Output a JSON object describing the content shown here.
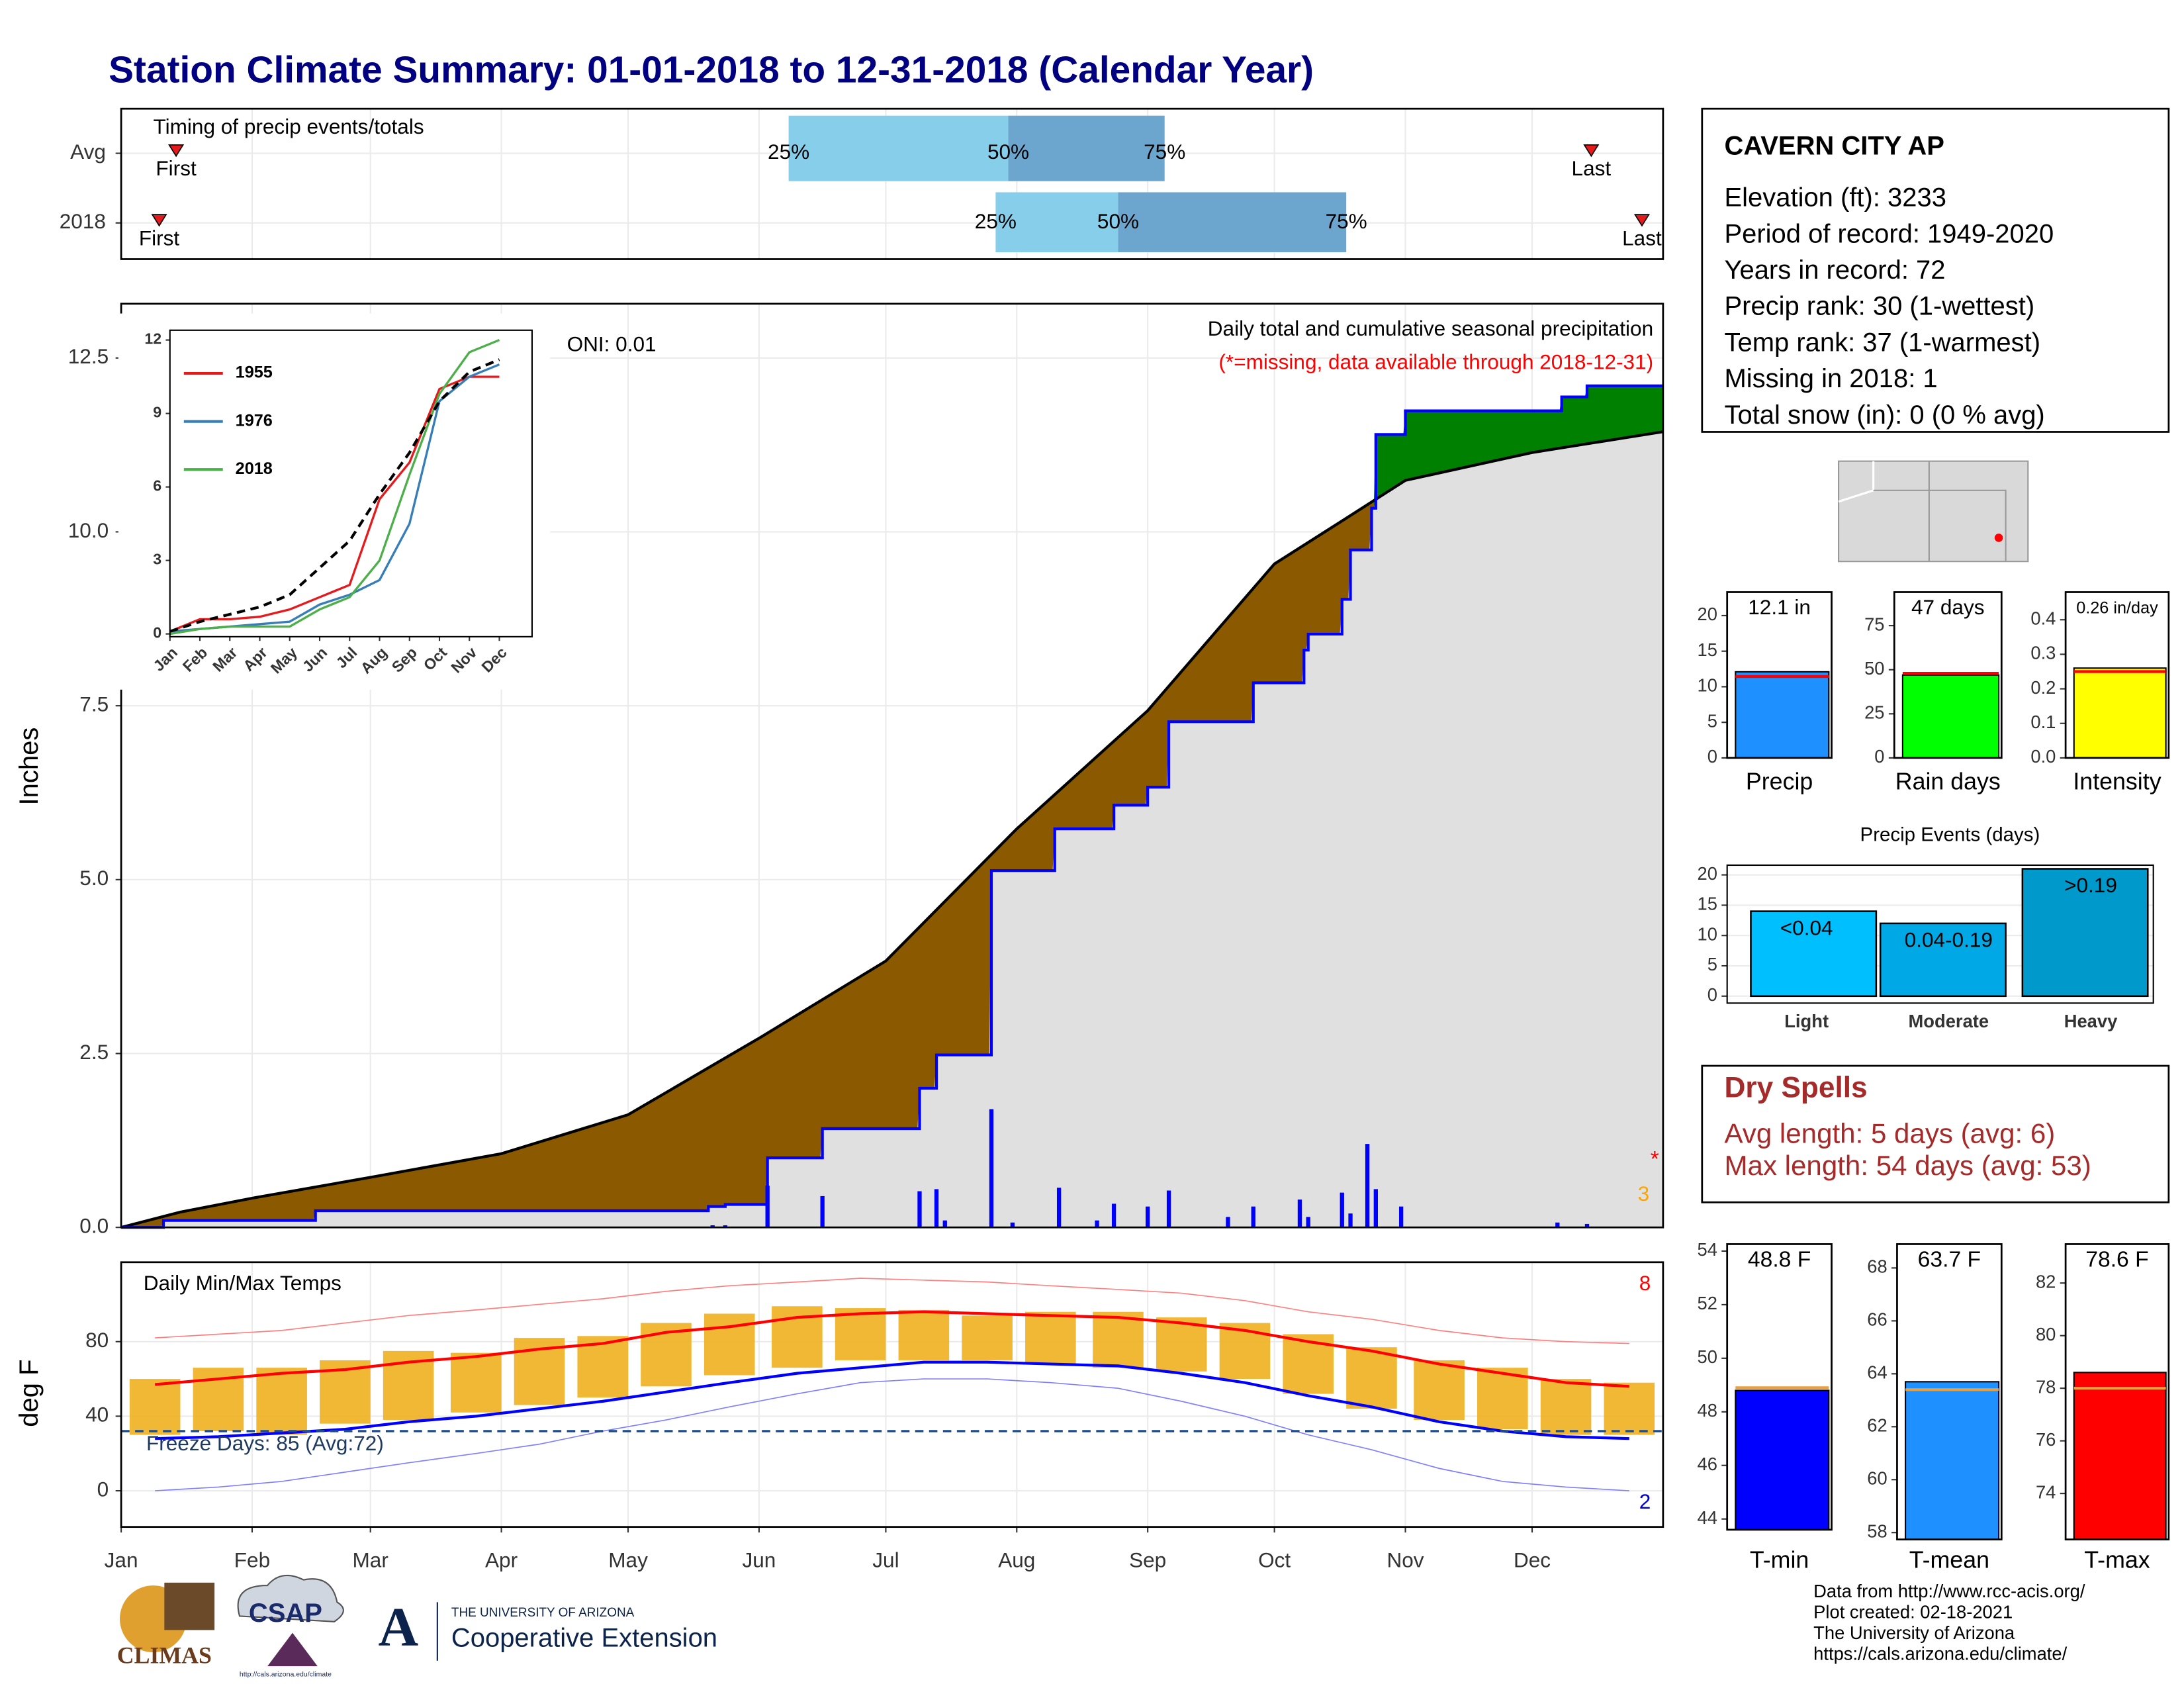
{
  "title": "Station Climate Summary: 01-01-2018 to 12-31-2018 (Calendar Year)",
  "chart_data": [
    {
      "type": "timing",
      "title": "Timing of precip events/totals",
      "categories": [
        "Avg",
        "2018"
      ],
      "xlim": [
        0,
        365
      ],
      "series": [
        {
          "name": "First",
          "color": "#e41a1c",
          "values": [
            13,
            9
          ]
        },
        {
          "name": "25%",
          "color": "#87ceeb",
          "values": [
            158,
            207
          ]
        },
        {
          "name": "50%",
          "color": "#6ca6ce",
          "values": [
            210,
            236
          ]
        },
        {
          "name": "75%",
          "values": [
            247,
            290
          ]
        },
        {
          "name": "Last",
          "color": "#e41a1c",
          "values": [
            348,
            360
          ]
        }
      ]
    },
    {
      "type": "area",
      "y_label": "Inches",
      "annotations": [
        "Daily total and cumulative seasonal precipitation",
        "(*=missing, data available through 2018-12-31)",
        "ONI: 0.01",
        "*",
        "3"
      ],
      "xlim": [
        0,
        365
      ],
      "ylim": [
        0,
        13.28
      ],
      "yticks": [
        {
          "value": 0,
          "label": "0.0"
        },
        2.5,
        {
          "value": 5,
          "label": "5.0"
        },
        7.5,
        {
          "value": 10,
          "label": "10.0"
        },
        12.5
      ],
      "grid": true,
      "fill_colors": {
        "deficit": "#8b5a00",
        "surplus": "#008000",
        "base": "#e0e0e0"
      },
      "series": [
        {
          "color": "#000000",
          "x": [
            0,
            14,
            31,
            59,
            90,
            120,
            151,
            181,
            212,
            243,
            273,
            287,
            304,
            334,
            365
          ],
          "values": [
            0,
            0.22,
            0.42,
            0.72,
            1.06,
            1.62,
            2.72,
            3.83,
            5.73,
            7.43,
            9.54,
            10.08,
            10.74,
            11.14,
            11.44
          ]
        },
        {
          "color": "#0000ff",
          "step": true,
          "x": [
            0,
            10,
            46,
            139,
            143,
            153,
            166,
            189,
            193,
            206,
            221,
            235,
            243,
            248,
            268,
            280,
            281,
            289,
            291,
            296,
            297,
            304,
            341,
            347
          ],
          "values": [
            0,
            0.1,
            0.24,
            0.3,
            0.33,
            1.0,
            1.42,
            2.0,
            2.48,
            5.13,
            5.73,
            6.07,
            6.33,
            7.27,
            7.83,
            8.3,
            8.53,
            9.03,
            9.74,
            10.34,
            11.4,
            11.74,
            11.94,
            12.1
          ]
        },
        {
          "color": "#0000ff",
          "bars": true,
          "x": [
            140,
            143,
            153,
            166,
            189,
            193,
            195,
            206,
            211,
            222,
            231,
            235,
            243,
            248,
            262,
            268,
            279,
            281,
            289,
            291,
            295,
            297,
            303,
            340,
            347
          ],
          "values": [
            0.03,
            0.03,
            0.6,
            0.45,
            0.52,
            0.55,
            0.1,
            1.7,
            0.07,
            0.57,
            0.1,
            0.34,
            0.3,
            0.53,
            0.15,
            0.3,
            0.4,
            0.15,
            0.5,
            0.2,
            1.2,
            0.55,
            0.3,
            0.07,
            0.05
          ]
        }
      ]
    },
    {
      "type": "line",
      "categories": [
        "Jan",
        "Feb",
        "Mar",
        "Apr",
        "May",
        "Jun",
        "Jul",
        "Aug",
        "Sep",
        "Oct",
        "Nov",
        "Dec"
      ],
      "ylim": [
        0,
        12.4
      ],
      "yticks": [
        0,
        3,
        6,
        9,
        12
      ],
      "series": [
        {
          "name": "1955",
          "color": "#e41a1c",
          "values": [
            0.1,
            0.6,
            0.6,
            0.7,
            1.0,
            1.5,
            2.0,
            5.5,
            7.0,
            10.0,
            10.5,
            10.5
          ]
        },
        {
          "name": "1976",
          "color": "#377eb8",
          "values": [
            0.1,
            0.2,
            0.3,
            0.4,
            0.5,
            1.2,
            1.6,
            2.2,
            4.5,
            9.5,
            10.5,
            11.0
          ]
        },
        {
          "name": "2018",
          "color": "#4daf4a",
          "values": [
            0.0,
            0.2,
            0.3,
            0.3,
            0.3,
            1.0,
            1.5,
            3.0,
            6.5,
            9.8,
            11.5,
            12.0
          ]
        },
        {
          "color": "#000000",
          "dashed": true,
          "values": [
            0.1,
            0.5,
            0.8,
            1.1,
            1.6,
            2.7,
            3.8,
            5.7,
            7.4,
            9.5,
            10.7,
            11.2
          ]
        }
      ]
    },
    {
      "type": "range",
      "title": "Daily Min/Max Temps",
      "annotations": [
        "Freeze Days: 85 (Avg:72)",
        "8",
        "2"
      ],
      "y_label": "deg F",
      "xlim": [
        0,
        365
      ],
      "ylim": [
        -19.4,
        122.6
      ],
      "yticks": [
        0,
        40,
        80
      ],
      "freeze": 32,
      "xticks": [
        {
          "value": 0,
          "label": "Jan"
        },
        {
          "value": 31,
          "label": "Feb"
        },
        {
          "value": 59,
          "label": "Mar"
        },
        {
          "value": 90,
          "label": "Apr"
        },
        {
          "value": 120,
          "label": "May"
        },
        {
          "value": 151,
          "label": "Jun"
        },
        {
          "value": 181,
          "label": "Jul"
        },
        {
          "value": 212,
          "label": "Aug"
        },
        {
          "value": 243,
          "label": "Sep"
        },
        {
          "value": 273,
          "label": "Oct"
        },
        {
          "value": 304,
          "label": "Nov"
        },
        {
          "value": 334,
          "label": "Dec"
        }
      ],
      "x": [
        8,
        23,
        38,
        53,
        68,
        84,
        99,
        114,
        129,
        144,
        160,
        175,
        190,
        205,
        220,
        236,
        251,
        266,
        281,
        296,
        312,
        327,
        342,
        357
      ],
      "series": [
        {
          "color": "#f0b020",
          "values": [
            60,
            66,
            66,
            70,
            75,
            74,
            82,
            83,
            90,
            95,
            99,
            98,
            97,
            94,
            96,
            96,
            93,
            90,
            84,
            77,
            70,
            66,
            60,
            58
          ]
        },
        {
          "color": "#f0b020",
          "values": [
            30,
            32,
            30,
            36,
            38,
            42,
            46,
            50,
            56,
            62,
            66,
            70,
            70,
            70,
            68,
            66,
            64,
            60,
            52,
            44,
            38,
            33,
            30,
            30
          ]
        },
        {
          "color": "#ff0000",
          "values": [
            57,
            60,
            63,
            65,
            69,
            72,
            76,
            79,
            85,
            88,
            93,
            95,
            96,
            95,
            94,
            93,
            90,
            86,
            80,
            75,
            68,
            63,
            58,
            56
          ]
        },
        {
          "color": "#0000ff",
          "values": [
            28,
            29,
            31,
            33,
            37,
            40,
            44,
            48,
            53,
            58,
            63,
            66,
            69,
            69,
            68,
            67,
            63,
            58,
            51,
            45,
            37,
            32,
            29,
            28
          ]
        },
        {
          "color": "#ff8080",
          "values": [
            82,
            84,
            86,
            90,
            94,
            97,
            100,
            103,
            107,
            110,
            112,
            114,
            113,
            112,
            110,
            108,
            106,
            102,
            96,
            92,
            86,
            82,
            80,
            79
          ]
        },
        {
          "color": "#8080ff",
          "values": [
            0,
            2,
            5,
            10,
            15,
            20,
            25,
            32,
            38,
            45,
            52,
            58,
            60,
            60,
            58,
            55,
            48,
            40,
            30,
            22,
            12,
            5,
            2,
            0
          ]
        }
      ]
    },
    {
      "type": "bar",
      "categories": [
        "Precip"
      ],
      "values": [
        12.1
      ],
      "value_labels": [
        "12.1 in"
      ],
      "avg": 11.44,
      "avg_color": "#ff0000",
      "color": "#1e90ff",
      "ylim": [
        0,
        23.3
      ],
      "yticks": [
        0,
        5,
        10,
        15,
        20
      ]
    },
    {
      "type": "bar",
      "categories": [
        "Rain days"
      ],
      "values": [
        47
      ],
      "value_labels": [
        "47 days"
      ],
      "avg": 48,
      "avg_color": "#ff0000",
      "color": "#00ff00",
      "ylim": [
        0,
        94
      ],
      "yticks": [
        0,
        25,
        50,
        75
      ]
    },
    {
      "type": "bar",
      "categories": [
        "Intensity"
      ],
      "values": [
        0.26
      ],
      "value_labels": [
        "0.26 in/day"
      ],
      "avg": 0.25,
      "avg_color": "#ff0000",
      "color": "#ffff00",
      "ylim": [
        0,
        0.48
      ],
      "yticks": [
        {
          "value": 0,
          "label": "0.0"
        },
        0.1,
        0.2,
        0.3,
        0.4
      ]
    },
    {
      "type": "bar",
      "title": "Precip Events (days)",
      "categories": [
        "Light",
        "Moderate",
        "Heavy"
      ],
      "values": [
        14,
        12,
        21
      ],
      "bin_labels": [
        "<0.04",
        "0.04-0.19",
        ">0.19"
      ],
      "colors": [
        "#00bfff",
        "#00a9e6",
        "#0099cc"
      ],
      "ylim": [
        0,
        21.6
      ],
      "yticks": [
        0,
        5,
        10,
        15,
        20
      ],
      "grid": true
    },
    {
      "type": "bar",
      "categories": [
        "T-min"
      ],
      "values": [
        48.8
      ],
      "value_labels": [
        "48.8 F"
      ],
      "avg": 48.9,
      "avg_color": "#e8a040",
      "color": "#0000ff",
      "ylim": [
        43.6,
        54.26
      ],
      "yticks": [
        44,
        46,
        48,
        50,
        52,
        54
      ]
    },
    {
      "type": "bar",
      "categories": [
        "T-mean"
      ],
      "values": [
        63.7
      ],
      "value_labels": [
        "63.7 F"
      ],
      "avg": 63.4,
      "avg_color": "#e8a040",
      "color": "#1e90ff",
      "ylim": [
        57.74,
        68.9
      ],
      "yticks": [
        58,
        60,
        62,
        64,
        66,
        68
      ]
    },
    {
      "type": "bar",
      "categories": [
        "T-max"
      ],
      "values": [
        78.6
      ],
      "value_labels": [
        "78.6 F"
      ],
      "avg": 78.0,
      "avg_color": "#e8a040",
      "color": "#ff0000",
      "ylim": [
        72.25,
        83.48
      ],
      "yticks": [
        74,
        76,
        78,
        80,
        82
      ]
    }
  ],
  "station": {
    "name": "CAVERN CITY AP",
    "lines": [
      "Elevation (ft): 3233",
      "Period of record: 1949-2020",
      "Years in record: 72",
      "Precip rank: 30 (1-wettest)",
      "Temp rank: 37 (1-warmest)",
      "Missing in 2018: 1",
      "Total snow (in): 0 (0 % avg)"
    ]
  },
  "dry_spells": {
    "title": "Dry Spells",
    "lines": [
      "Avg length: 5 days (avg: 6)",
      "Max length: 54 days (avg: 53)"
    ]
  },
  "footer": [
    "Data from http://www.rcc-acis.org/",
    "Plot created: 02-18-2021",
    "The University of Arizona",
    "https://cals.arizona.edu/climate/"
  ],
  "logos": {
    "climas": "CLIMAS",
    "csap": "CSAP",
    "csap_url": "http://cals.arizona.edu/climate",
    "ua": "THE UNIVERSITY OF ARIZONA",
    "extension": "Cooperative Extension"
  }
}
